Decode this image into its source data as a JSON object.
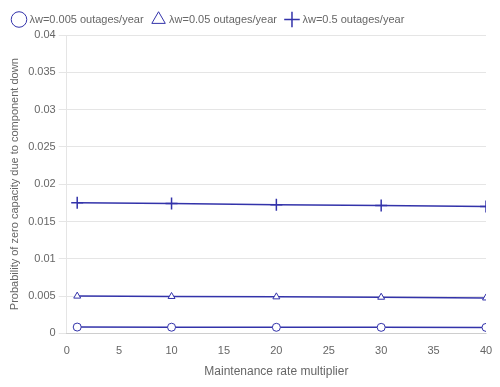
{
  "chart_data": {
    "type": "line",
    "x": [
      1,
      10,
      20,
      30,
      40
    ],
    "series": [
      {
        "name": "λw=0.005 outages/year",
        "color": "#3333AA",
        "marker": "circle",
        "values": [
          0.00085,
          0.00083,
          0.00082,
          0.00081,
          0.0008
        ]
      },
      {
        "name": "λw=0.05 outages/year",
        "color": "#3333AA",
        "marker": "triangle",
        "values": [
          0.005,
          0.00495,
          0.0049,
          0.00485,
          0.00475
        ]
      },
      {
        "name": "λw=0.5 outages/year",
        "color": "#3333AA",
        "marker": "plus",
        "values": [
          0.0175,
          0.0174,
          0.01725,
          0.01715,
          0.017
        ]
      }
    ],
    "xlabel": "Maintenance rate multiplier",
    "ylabel": "Probability of zero capacity due to component down",
    "xlim": [
      0,
      40
    ],
    "ylim": [
      0,
      0.04
    ],
    "xticks": [
      0,
      5,
      10,
      15,
      20,
      25,
      30,
      35,
      40
    ],
    "yticks": [
      0,
      0.005,
      0.01,
      0.015,
      0.02,
      0.025,
      0.03,
      0.035,
      0.04
    ],
    "grid": "y",
    "legend": "upper left"
  }
}
